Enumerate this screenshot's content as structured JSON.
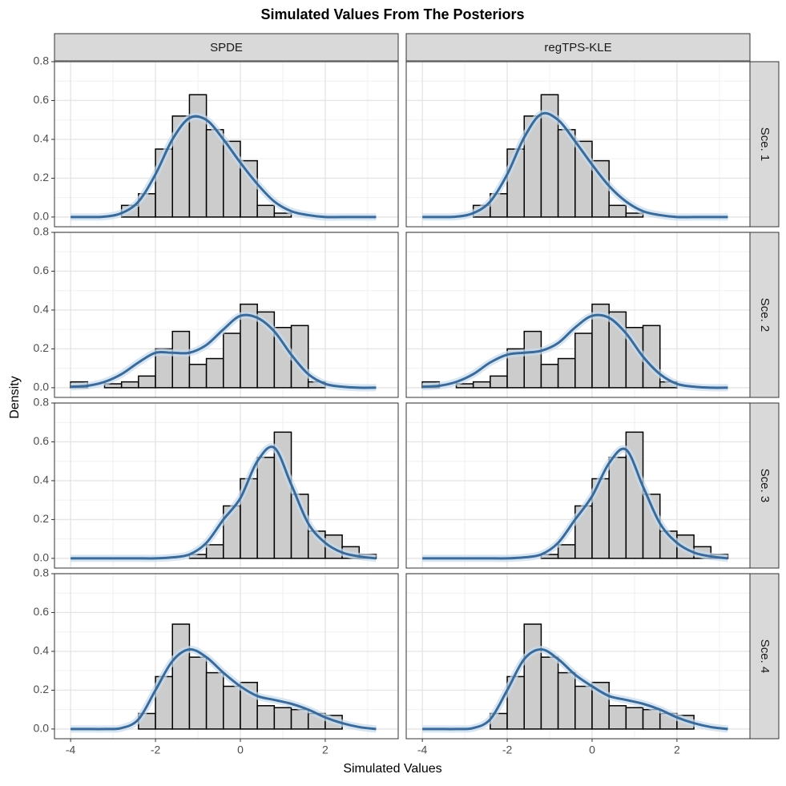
{
  "chart_data": {
    "type": "histogram",
    "title": "Simulated Values From The Posteriors",
    "x_label": "Simulated Values",
    "y_label": "Density",
    "columns": [
      "SPDE",
      "regTPS-KLE"
    ],
    "rows": [
      "Sce. 1",
      "Sce. 2",
      "Sce. 3",
      "Sce. 4"
    ],
    "xlim": [
      -4.38,
      3.72
    ],
    "ylim": [
      -0.05,
      0.8
    ],
    "xticks": [
      -4,
      -2,
      0,
      2
    ],
    "yticks": [
      {
        "value": 0,
        "label": "0.0"
      },
      0.2,
      0.4,
      0.6,
      0.8
    ],
    "grid": true,
    "bar_color": "#cccccc",
    "curve_color": "#3b6a98",
    "band_color": "#c6dbef",
    "bins": [
      -4.0,
      -3.6,
      -3.2,
      -2.8,
      -2.4,
      -2.0,
      -1.6,
      -1.2,
      -0.8,
      -0.4,
      0.0,
      0.4,
      0.8,
      1.2,
      1.6,
      2.0,
      2.4,
      2.8,
      3.2
    ],
    "density_x": [
      -4.0,
      -3.6,
      -3.2,
      -2.8,
      -2.4,
      -2.0,
      -1.6,
      -1.2,
      -0.8,
      -0.4,
      0.0,
      0.4,
      0.8,
      1.2,
      1.6,
      2.0,
      2.4,
      2.8,
      3.2
    ],
    "panels": [
      [
        {
          "counts": [
            0,
            0,
            0,
            0.06,
            0.12,
            0.35,
            0.52,
            0.63,
            0.45,
            0.39,
            0.29,
            0.06,
            0.02,
            0,
            0,
            0,
            0,
            0
          ],
          "density": [
            0,
            0,
            0.002,
            0.02,
            0.08,
            0.22,
            0.4,
            0.51,
            0.5,
            0.4,
            0.28,
            0.17,
            0.08,
            0.03,
            0.01,
            0,
            0,
            0,
            0
          ]
        },
        {
          "counts": [
            0,
            0,
            0,
            0.06,
            0.12,
            0.35,
            0.52,
            0.63,
            0.45,
            0.39,
            0.29,
            0.06,
            0.02,
            0,
            0,
            0,
            0,
            0
          ],
          "density": [
            0,
            0,
            0.002,
            0.02,
            0.08,
            0.22,
            0.41,
            0.53,
            0.5,
            0.39,
            0.27,
            0.16,
            0.08,
            0.03,
            0.01,
            0,
            0,
            0,
            0
          ]
        }
      ],
      [
        {
          "counts": [
            0.03,
            0,
            0.02,
            0.03,
            0.06,
            0.2,
            0.29,
            0.12,
            0.15,
            0.28,
            0.43,
            0.39,
            0.31,
            0.32,
            0.03,
            0,
            0,
            0
          ],
          "density": [
            0.005,
            0.01,
            0.03,
            0.07,
            0.13,
            0.18,
            0.18,
            0.18,
            0.22,
            0.3,
            0.37,
            0.36,
            0.29,
            0.17,
            0.07,
            0.02,
            0.005,
            0,
            0
          ]
        },
        {
          "counts": [
            0.03,
            0,
            0.02,
            0.03,
            0.06,
            0.2,
            0.29,
            0.12,
            0.15,
            0.28,
            0.43,
            0.39,
            0.31,
            0.32,
            0.03,
            0,
            0,
            0
          ],
          "density": [
            0.005,
            0.01,
            0.03,
            0.07,
            0.13,
            0.17,
            0.18,
            0.19,
            0.23,
            0.31,
            0.37,
            0.36,
            0.28,
            0.16,
            0.07,
            0.02,
            0.005,
            0,
            0
          ]
        }
      ],
      [
        {
          "counts": [
            0,
            0,
            0,
            0,
            0,
            0,
            0,
            0.02,
            0.07,
            0.27,
            0.41,
            0.52,
            0.65,
            0.33,
            0.14,
            0.12,
            0.06,
            0.02
          ],
          "density": [
            0,
            0,
            0,
            0,
            0,
            0,
            0.005,
            0.02,
            0.08,
            0.2,
            0.31,
            0.5,
            0.57,
            0.38,
            0.18,
            0.08,
            0.03,
            0.01,
            0
          ]
        },
        {
          "counts": [
            0,
            0,
            0,
            0,
            0,
            0,
            0,
            0.02,
            0.07,
            0.27,
            0.41,
            0.52,
            0.65,
            0.33,
            0.14,
            0.12,
            0.06,
            0.02
          ],
          "density": [
            0,
            0,
            0,
            0,
            0,
            0,
            0.005,
            0.02,
            0.08,
            0.2,
            0.32,
            0.49,
            0.56,
            0.37,
            0.18,
            0.08,
            0.03,
            0.01,
            0
          ]
        }
      ],
      [
        {
          "counts": [
            0,
            0,
            0,
            0,
            0.08,
            0.27,
            0.54,
            0.37,
            0.29,
            0.22,
            0.24,
            0.12,
            0.11,
            0.1,
            0.08,
            0.07,
            0,
            0
          ],
          "density": [
            0,
            0,
            0,
            0.005,
            0.05,
            0.2,
            0.35,
            0.41,
            0.37,
            0.29,
            0.22,
            0.17,
            0.15,
            0.13,
            0.1,
            0.06,
            0.03,
            0.01,
            0
          ]
        },
        {
          "counts": [
            0,
            0,
            0,
            0,
            0.08,
            0.27,
            0.54,
            0.37,
            0.29,
            0.22,
            0.24,
            0.12,
            0.11,
            0.1,
            0.08,
            0.07,
            0,
            0
          ],
          "density": [
            0,
            0,
            0,
            0.005,
            0.05,
            0.2,
            0.36,
            0.41,
            0.36,
            0.28,
            0.22,
            0.17,
            0.15,
            0.13,
            0.1,
            0.06,
            0.03,
            0.01,
            0
          ]
        }
      ]
    ]
  }
}
